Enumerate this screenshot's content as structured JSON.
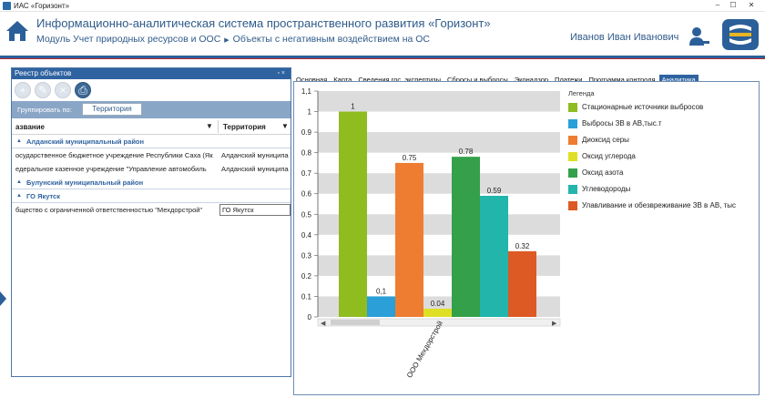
{
  "window": {
    "title": "ИАС «Горизонт»"
  },
  "header": {
    "system_title": "Информационно-аналитическая система пространственного развития «Горизонт»",
    "module": "Модуль Учет природных ресурсов и ООС",
    "section": "Объекты с негативным воздействием на ОС",
    "user": "Иванов Иван Иванович"
  },
  "left_panel": {
    "title": "Реестр объектов",
    "pin": "▫ ×",
    "group_by_label": "Группировать по:",
    "group_by_chip": "Территория",
    "columns": [
      "азвание",
      "Территория"
    ],
    "groups": [
      {
        "name": "Алданский муниципальный район",
        "rows": [
          {
            "name": "осударственное бюджетное учреждение Республики Саха (Як",
            "territory": "Алданский муниципал"
          },
          {
            "name": "едеральное казенное учреждение \"Управление автомобиль",
            "territory": "Алданский муниципал"
          }
        ]
      },
      {
        "name": "Булунский муниципальный район",
        "rows": []
      },
      {
        "name": "ГО Якутск",
        "rows": [
          {
            "name": "бщество с ограниченной ответственностью  \"Мехдорстрой\"",
            "territory": "ГО Якутск"
          }
        ]
      }
    ]
  },
  "tabs": [
    "Основная",
    "Карта",
    "Сведения гос. экспертизы",
    "Сбросы и выбросы",
    "Эконадзор",
    "Платежи",
    "Программа контроля",
    "Аналитика"
  ],
  "active_tab": "Аналитика",
  "chart_data": {
    "type": "bar",
    "categories": [
      "ООО Мехдорстрой"
    ],
    "ylim": [
      0,
      1.1
    ],
    "y_ticks": [
      "0",
      "0.1",
      "0.2",
      "0.3",
      "0.4",
      "0.5",
      "0.6",
      "0.7",
      "0.8",
      "0.9",
      "1",
      "1,1"
    ],
    "grid": "alternating horizontal bands",
    "legend_title": "Легенда",
    "legend_position": "right",
    "series": [
      {
        "name": "Стационарные источники выбросов",
        "values": [
          1
        ],
        "label": "1",
        "color": "#8fbc1f"
      },
      {
        "name": "Выбросы ЗВ в АВ,тыс.т",
        "values": [
          0.1
        ],
        "label": "0,1",
        "color": "#2a9fd8"
      },
      {
        "name": "Диоксид серы",
        "values": [
          0.75
        ],
        "label": "0.75",
        "color": "#ee7d31"
      },
      {
        "name": "Оксид углерода",
        "values": [
          0.04
        ],
        "label": "0.04",
        "color": "#dfe026"
      },
      {
        "name": "Оксид азота",
        "values": [
          0.78
        ],
        "label": "0.78",
        "color": "#35a04a"
      },
      {
        "name": "Углеводороды",
        "values": [
          0.59
        ],
        "label": "0.59",
        "color": "#21b5ac"
      },
      {
        "name": "Улавливание и обезвреживание ЗВ в АВ, тыс",
        "values": [
          0.32
        ],
        "label": "0.32",
        "color": "#dd5a24"
      }
    ]
  }
}
